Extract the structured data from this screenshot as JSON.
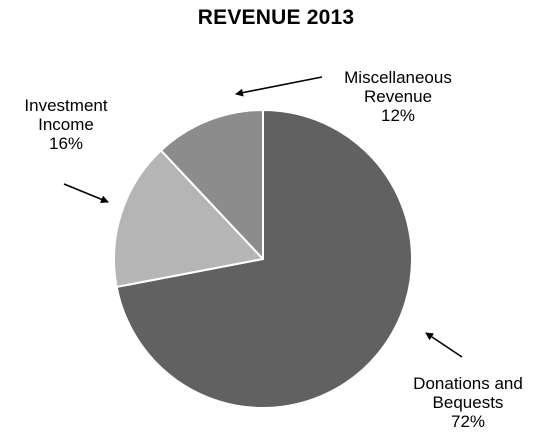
{
  "chart_data": {
    "type": "pie",
    "title": "REVENUE 2013",
    "slices": [
      {
        "label_lines": [
          "Donations and",
          "Bequests",
          "72%"
        ],
        "name": "Donations and Bequests",
        "value": 72,
        "color": "#616161"
      },
      {
        "label_lines": [
          "Investment",
          "Income",
          "16%"
        ],
        "name": "Investment Income",
        "value": 16,
        "color": "#b5b5b5"
      },
      {
        "label_lines": [
          "Miscellaneous",
          "Revenue",
          "12%"
        ],
        "name": "Miscellaneous Revenue",
        "value": 12,
        "color": "#8c8c8c"
      }
    ],
    "legend": "none"
  }
}
